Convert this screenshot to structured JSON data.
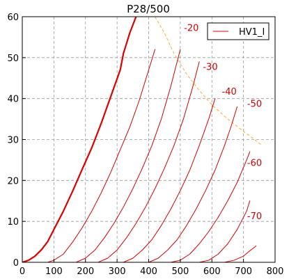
{
  "chart_data": {
    "type": "line",
    "title": "P28/500",
    "xlabel": "",
    "ylabel": "",
    "xlim": [
      0,
      800
    ],
    "ylim": [
      0,
      60
    ],
    "xticks": [
      0,
      100,
      200,
      300,
      400,
      500,
      600,
      700,
      800
    ],
    "yticks": [
      0,
      10,
      20,
      30,
      40,
      50,
      60
    ],
    "grid": true,
    "legend": {
      "placement": "top-right",
      "entries": [
        "HV1_I"
      ]
    },
    "colors": {
      "curves": "#dd0000",
      "load_line": "#ffaa33",
      "grid": "#999999"
    },
    "series": [
      {
        "name": "HV1_I",
        "label": "",
        "bold": true,
        "x": [
          0,
          20,
          40,
          60,
          80,
          100,
          130,
          160,
          190,
          220,
          250,
          280,
          310,
          320,
          340,
          360
        ],
        "y": [
          0,
          0.5,
          1.5,
          3,
          5,
          8,
          12.5,
          17.5,
          22.8,
          28,
          34,
          40.5,
          47,
          51,
          56,
          60
        ]
      },
      {
        "label": "",
        "x": [
          80,
          100,
          130,
          160,
          190,
          220,
          250,
          280,
          310,
          340,
          370,
          400,
          420
        ],
        "y": [
          0,
          0.5,
          2,
          5,
          8.5,
          12.5,
          17,
          22,
          27.5,
          33,
          39.5,
          47,
          52
        ]
      },
      {
        "label": "-20",
        "x": [
          170,
          200,
          230,
          260,
          290,
          320,
          350,
          380,
          410,
          440,
          470,
          500
        ],
        "y": [
          0,
          1,
          3,
          6,
          9.5,
          13.5,
          18,
          23,
          28.5,
          35,
          43,
          52
        ]
      },
      {
        "label": "-30",
        "x": [
          240,
          270,
          300,
          330,
          360,
          390,
          420,
          450,
          480,
          510,
          540,
          560
        ],
        "y": [
          0,
          1,
          3,
          6,
          9.5,
          13.5,
          18,
          23,
          28.5,
          35,
          43,
          49
        ]
      },
      {
        "label": "-40",
        "x": [
          320,
          350,
          380,
          410,
          440,
          470,
          500,
          530,
          560,
          590,
          610
        ],
        "y": [
          0,
          1,
          3,
          5.5,
          9,
          13,
          17.5,
          22.5,
          28.5,
          35,
          40
        ]
      },
      {
        "label": "-50",
        "x": [
          400,
          430,
          460,
          490,
          520,
          550,
          580,
          610,
          640,
          660,
          680
        ],
        "y": [
          0,
          1,
          3,
          5.5,
          9,
          13,
          17.5,
          22.5,
          28.5,
          33,
          38
        ]
      },
      {
        "label": "-60",
        "x": [
          470,
          500,
          530,
          560,
          590,
          620,
          650,
          680,
          710,
          720
        ],
        "y": [
          0,
          0.5,
          2,
          4.5,
          7.5,
          11,
          15,
          19.5,
          25,
          27
        ]
      },
      {
        "label": "-70",
        "x": [
          560,
          590,
          620,
          650,
          680,
          710,
          720
        ],
        "y": [
          0,
          0.5,
          2,
          4.5,
          8,
          12.5,
          15
        ]
      },
      {
        "label": "",
        "x": [
          640,
          670,
          700,
          720,
          740
        ],
        "y": [
          0,
          0.5,
          1.5,
          2.8,
          4
        ]
      }
    ],
    "load_line": {
      "x": [
        420,
        450,
        480,
        520,
        560,
        600,
        650,
        700,
        760
      ],
      "y": [
        60,
        56,
        51,
        46,
        42,
        38.5,
        35,
        32,
        28.5
      ]
    },
    "curve_labels": [
      {
        "text": "-20",
        "x": 535,
        "y": 56.5
      },
      {
        "text": "-30",
        "x": 595,
        "y": 47
      },
      {
        "text": "-40",
        "x": 655,
        "y": 41
      },
      {
        "text": "-50",
        "x": 735,
        "y": 38
      },
      {
        "text": "-60",
        "x": 735,
        "y": 23.5
      },
      {
        "text": "-70",
        "x": 735,
        "y": 10.5
      }
    ]
  }
}
